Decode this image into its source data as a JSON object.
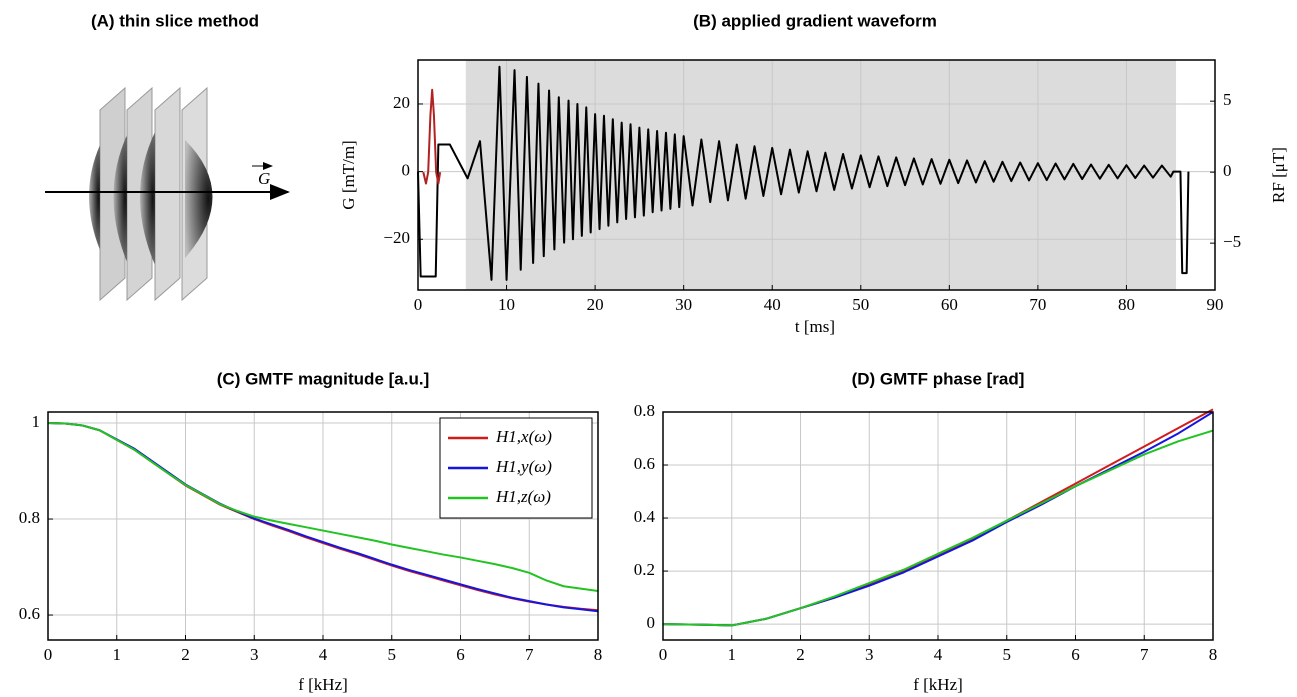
{
  "diagram": {
    "title": "(A) thin slice method",
    "vector_label": "G"
  },
  "chart_data": [
    {
      "type": "line",
      "title": "(B) applied gradient waveform",
      "x_label": "t [ms]",
      "y_label": "G [mT/m]",
      "y2_label": "RF [μT]",
      "xlim": [
        0,
        90
      ],
      "xticks": [
        0,
        10,
        20,
        30,
        40,
        50,
        60,
        70,
        80,
        90
      ],
      "ylim": [
        -35,
        33
      ],
      "yticks": [
        {
          "value": -20,
          "label": "−20"
        },
        0,
        20
      ],
      "y2lim": [
        -8.3,
        7.9
      ],
      "y2ticks": [
        {
          "value": -5,
          "label": "−5"
        },
        0,
        5
      ],
      "y2_color": "#b22222",
      "grid": true,
      "shade_x": [
        5.4,
        85.6
      ],
      "shade_color": "#dcdcdc",
      "series": [
        {
          "color": "#000000",
          "x": [
            0,
            0.3,
            2.0,
            2.3,
            3.6,
            5.6,
            7.0,
            8.3,
            9.2,
            10.0,
            10.9,
            11.6,
            12.3,
            13.0,
            13.6,
            14.2,
            14.8,
            15.4,
            15.9,
            16.5,
            17.0,
            17.5,
            18.0,
            18.5,
            19.0,
            19.5,
            20.0,
            20.5,
            21.0,
            21.5,
            22.0,
            22.5,
            23.0,
            23.5,
            24.0,
            24.5,
            25.0,
            25.5,
            26.0,
            26.5,
            27.0,
            27.5,
            28.0,
            28.5,
            29.0,
            29.5,
            30.0,
            31,
            32,
            33,
            34,
            35,
            36,
            37,
            38,
            39,
            40,
            41,
            42,
            43,
            44,
            45,
            46,
            47,
            48,
            49,
            50,
            51,
            52,
            53,
            54,
            55,
            56,
            57,
            58,
            59,
            60,
            61,
            62,
            63,
            64,
            65,
            66,
            67,
            68,
            69,
            70,
            71,
            72,
            73,
            74,
            75,
            76,
            77,
            78,
            79,
            80,
            81,
            82,
            83,
            84,
            85,
            85.3,
            86.1,
            86.3,
            86.8,
            87.0
          ],
          "values": [
            0,
            -31,
            -31,
            8,
            8,
            -2,
            9,
            -32,
            31,
            -32,
            30,
            -29,
            28,
            -27,
            26,
            -25,
            24,
            -23,
            22,
            -21,
            21,
            -20,
            20,
            -19,
            19,
            -18,
            17,
            -17,
            16.5,
            -16,
            15.5,
            -15,
            14.5,
            -14,
            14,
            -13.5,
            13,
            -13,
            12.5,
            -12,
            12,
            -11.5,
            11.5,
            -11,
            11,
            -10.5,
            10.5,
            -10,
            9.5,
            -9,
            9,
            -8.5,
            8,
            -8,
            7.5,
            -7.2,
            7,
            -6.7,
            6.5,
            -6.2,
            6,
            -5.8,
            5.6,
            -5.4,
            5.2,
            -5,
            4.8,
            -4.6,
            4.5,
            -4.3,
            4.2,
            -4,
            3.9,
            -3.8,
            3.7,
            -3.6,
            3.5,
            -3.4,
            3.3,
            -3.2,
            3.1,
            -3,
            2.9,
            -2.8,
            2.7,
            -2.6,
            2.5,
            -2.5,
            2.4,
            -2.3,
            2.3,
            -2.2,
            2.1,
            -2.1,
            2,
            -2,
            1.9,
            -1.9,
            1.8,
            -1.8,
            1.8,
            -1.5,
            0,
            0,
            -30,
            -30,
            0
          ]
        },
        {
          "color": "#b22222",
          "axis": "y2",
          "x": [
            0.6,
            0.9,
            1.15,
            1.4,
            1.6,
            1.8,
            2.05,
            2.3,
            2.5
          ],
          "values": [
            0,
            -0.8,
            0,
            4,
            5.8,
            4,
            0,
            -0.8,
            0
          ]
        }
      ]
    },
    {
      "type": "line",
      "title": "(C) GMTF magnitude [a.u.]",
      "x_label": "f [kHz]",
      "xlim": [
        0,
        8
      ],
      "xticks": [
        0,
        1,
        2,
        3,
        4,
        5,
        6,
        7,
        8
      ],
      "ylim": [
        0.548,
        1.023
      ],
      "yticks": [
        0.6,
        0.8,
        1
      ],
      "grid": true,
      "legend": "upper right",
      "x": [
        0,
        0.25,
        0.5,
        0.75,
        1,
        1.25,
        1.5,
        1.75,
        2,
        2.25,
        2.5,
        2.75,
        3,
        3.25,
        3.5,
        3.75,
        4,
        4.25,
        4.5,
        4.75,
        5,
        5.25,
        5.5,
        5.75,
        6,
        6.25,
        6.5,
        6.75,
        7,
        7.25,
        7.5,
        7.75,
        8
      ],
      "series": [
        {
          "name": "H1,x(ω)",
          "color": "#d01c1c",
          "values": [
            1.0,
            0.999,
            0.995,
            0.985,
            0.965,
            0.945,
            0.92,
            0.895,
            0.87,
            0.85,
            0.83,
            0.815,
            0.8,
            0.787,
            0.775,
            0.762,
            0.75,
            0.738,
            0.727,
            0.715,
            0.703,
            0.692,
            0.682,
            0.672,
            0.662,
            0.652,
            0.643,
            0.635,
            0.628,
            0.622,
            0.617,
            0.613,
            0.61
          ]
        },
        {
          "name": "H1,y(ω)",
          "color": "#1515e0",
          "values": [
            1.0,
            0.999,
            0.995,
            0.985,
            0.966,
            0.947,
            0.922,
            0.897,
            0.872,
            0.852,
            0.832,
            0.816,
            0.801,
            0.789,
            0.777,
            0.764,
            0.752,
            0.74,
            0.729,
            0.717,
            0.705,
            0.694,
            0.684,
            0.674,
            0.664,
            0.654,
            0.645,
            0.636,
            0.629,
            0.622,
            0.616,
            0.612,
            0.608
          ]
        },
        {
          "name": "H1,z(ω)",
          "color": "#22c322",
          "values": [
            1.0,
            0.999,
            0.995,
            0.985,
            0.965,
            0.945,
            0.92,
            0.895,
            0.871,
            0.851,
            0.831,
            0.817,
            0.805,
            0.797,
            0.79,
            0.783,
            0.776,
            0.769,
            0.762,
            0.755,
            0.747,
            0.74,
            0.733,
            0.726,
            0.72,
            0.713,
            0.706,
            0.698,
            0.688,
            0.672,
            0.66,
            0.655,
            0.65
          ]
        }
      ]
    },
    {
      "type": "line",
      "title": "(D) GMTF phase [rad]",
      "x_label": "f [kHz]",
      "xlim": [
        0,
        8
      ],
      "xticks": [
        0,
        1,
        2,
        3,
        4,
        5,
        6,
        7,
        8
      ],
      "ylim": [
        -0.06,
        0.8
      ],
      "yticks": [
        0,
        0.2,
        0.4,
        0.6,
        0.8
      ],
      "grid": true,
      "x": [
        0,
        0.5,
        1,
        1.5,
        2,
        2.5,
        3,
        3.5,
        4,
        4.5,
        5,
        5.5,
        6,
        6.5,
        7,
        7.5,
        8
      ],
      "series": [
        {
          "color": "#d01c1c",
          "values": [
            0,
            -0.002,
            -0.005,
            0.02,
            0.06,
            0.1,
            0.15,
            0.2,
            0.26,
            0.32,
            0.39,
            0.46,
            0.53,
            0.6,
            0.67,
            0.74,
            0.81
          ]
        },
        {
          "color": "#1515e0",
          "values": [
            0,
            -0.002,
            -0.005,
            0.02,
            0.06,
            0.1,
            0.145,
            0.195,
            0.255,
            0.315,
            0.385,
            0.45,
            0.52,
            0.585,
            0.65,
            0.72,
            0.8
          ]
        },
        {
          "color": "#22c322",
          "values": [
            0,
            -0.002,
            -0.005,
            0.02,
            0.06,
            0.105,
            0.155,
            0.205,
            0.265,
            0.325,
            0.39,
            0.455,
            0.52,
            0.58,
            0.64,
            0.69,
            0.73
          ]
        }
      ]
    }
  ]
}
